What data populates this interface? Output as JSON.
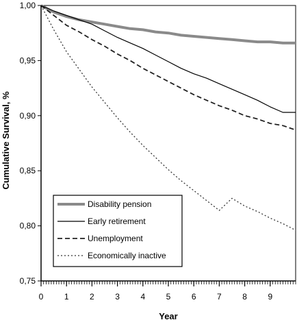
{
  "chart_data": {
    "type": "line",
    "title": "",
    "xlabel": "Year",
    "ylabel": "Cumulative Survival, %",
    "xlim": [
      0,
      10
    ],
    "ylim": [
      0.75,
      1.0
    ],
    "x_ticks": [
      "0",
      "1",
      "2",
      "3",
      "4",
      "5",
      "6",
      "7",
      "8",
      "9"
    ],
    "y_ticks": [
      "0,75",
      "0,80",
      "0,85",
      "0,90",
      "0,95",
      "1,00"
    ],
    "y_tick_values": [
      0.75,
      0.8,
      0.85,
      0.9,
      0.95,
      1.0
    ],
    "grid": false,
    "legend_position": "bottom-left",
    "x": [
      0,
      0.5,
      1,
      1.5,
      2,
      2.5,
      3,
      3.5,
      4,
      4.5,
      5,
      5.5,
      6,
      6.5,
      7,
      7.5,
      8,
      8.5,
      9,
      9.5,
      10
    ],
    "series": [
      {
        "name": "Disability pension",
        "color": "#8a8a8a",
        "style": "thick",
        "values": [
          1.0,
          0.994,
          0.99,
          0.987,
          0.985,
          0.983,
          0.981,
          0.979,
          0.978,
          0.976,
          0.975,
          0.973,
          0.972,
          0.971,
          0.97,
          0.969,
          0.968,
          0.967,
          0.967,
          0.966,
          0.966
        ]
      },
      {
        "name": "Early retirement",
        "color": "#000000",
        "style": "solid",
        "values": [
          1.0,
          0.995,
          0.991,
          0.987,
          0.983,
          0.977,
          0.971,
          0.966,
          0.961,
          0.955,
          0.949,
          0.943,
          0.938,
          0.934,
          0.929,
          0.924,
          0.919,
          0.914,
          0.908,
          0.903,
          0.903
        ]
      },
      {
        "name": "Unemployment",
        "color": "#222222",
        "style": "dashed",
        "values": [
          1.0,
          0.991,
          0.982,
          0.976,
          0.969,
          0.963,
          0.956,
          0.95,
          0.943,
          0.937,
          0.931,
          0.925,
          0.919,
          0.914,
          0.909,
          0.905,
          0.9,
          0.897,
          0.893,
          0.891,
          0.887
        ]
      },
      {
        "name": "Economically inactive",
        "color": "#333333",
        "style": "dotted",
        "values": [
          1.0,
          0.978,
          0.958,
          0.942,
          0.926,
          0.912,
          0.898,
          0.885,
          0.873,
          0.862,
          0.851,
          0.841,
          0.832,
          0.823,
          0.814,
          0.825,
          0.818,
          0.813,
          0.807,
          0.802,
          0.796
        ]
      }
    ]
  }
}
